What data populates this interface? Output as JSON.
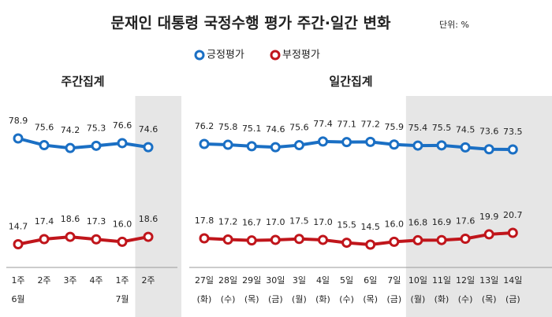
{
  "title": "문재인 대통령 국정수행 평가 주간·일간 변화",
  "unit": "단위: %",
  "chart_data": [
    {
      "type": "line",
      "title": "주간집계",
      "categories": [
        "1주",
        "2주",
        "3주",
        "4주",
        "1주",
        "2주"
      ],
      "sub_labels": [
        "6월",
        null,
        null,
        null,
        "7월",
        null
      ],
      "shaded_from": 5,
      "series": [
        {
          "name": "긍정평가",
          "color": "#1a6fc4",
          "values": [
            78.9,
            75.6,
            74.2,
            75.3,
            76.6,
            74.6
          ],
          "value_labels": [
            "78.9",
            "75.6",
            "74.2",
            "75.3",
            "76.6",
            "74.6"
          ]
        },
        {
          "name": "부정평가",
          "color": "#c0151b",
          "values": [
            14.7,
            17.4,
            18.6,
            17.3,
            16.0,
            18.6
          ],
          "value_labels": [
            "14.7",
            "17.4",
            "18.6",
            "17.3",
            "16.0",
            "18.6"
          ]
        }
      ]
    },
    {
      "type": "line",
      "title": "일간집계",
      "categories": [
        "27일",
        "28일",
        "29일",
        "30일",
        "3일",
        "4일",
        "5일",
        "6일",
        "7일",
        "10일",
        "11일",
        "12일",
        "13일",
        "14일"
      ],
      "sub_labels": [
        "(화)",
        "(수)",
        "(목)",
        "(금)",
        "(월)",
        "(화)",
        "(수)",
        "(목)",
        "(금)",
        "(월)",
        "(화)",
        "(수)",
        "(목)",
        "(금)"
      ],
      "shaded_from": 9,
      "series": [
        {
          "name": "긍정평가",
          "color": "#1a6fc4",
          "values": [
            76.2,
            75.8,
            75.1,
            74.6,
            75.6,
            77.4,
            77.1,
            77.2,
            75.9,
            75.4,
            75.5,
            74.5,
            73.6,
            73.5
          ],
          "value_labels": [
            "76.2",
            "75.8",
            "75.1",
            "74.6",
            "75.6",
            "77.4",
            "77.1",
            "77.2",
            "75.9",
            "75.4",
            "75.5",
            "74.5",
            "73.6",
            "73.5"
          ]
        },
        {
          "name": "부정평가",
          "color": "#c0151b",
          "values": [
            17.8,
            17.2,
            16.7,
            17.0,
            17.5,
            17.0,
            15.5,
            14.5,
            16.0,
            16.8,
            16.9,
            17.6,
            19.9,
            20.7
          ],
          "value_labels": [
            "17.8",
            "17.2",
            "16.7",
            "17.0",
            "17.5",
            "17.0",
            "15.5",
            "14.5",
            "16.0",
            "16.8",
            "16.9",
            "17.6",
            "19.9",
            "20.7"
          ]
        }
      ]
    }
  ]
}
